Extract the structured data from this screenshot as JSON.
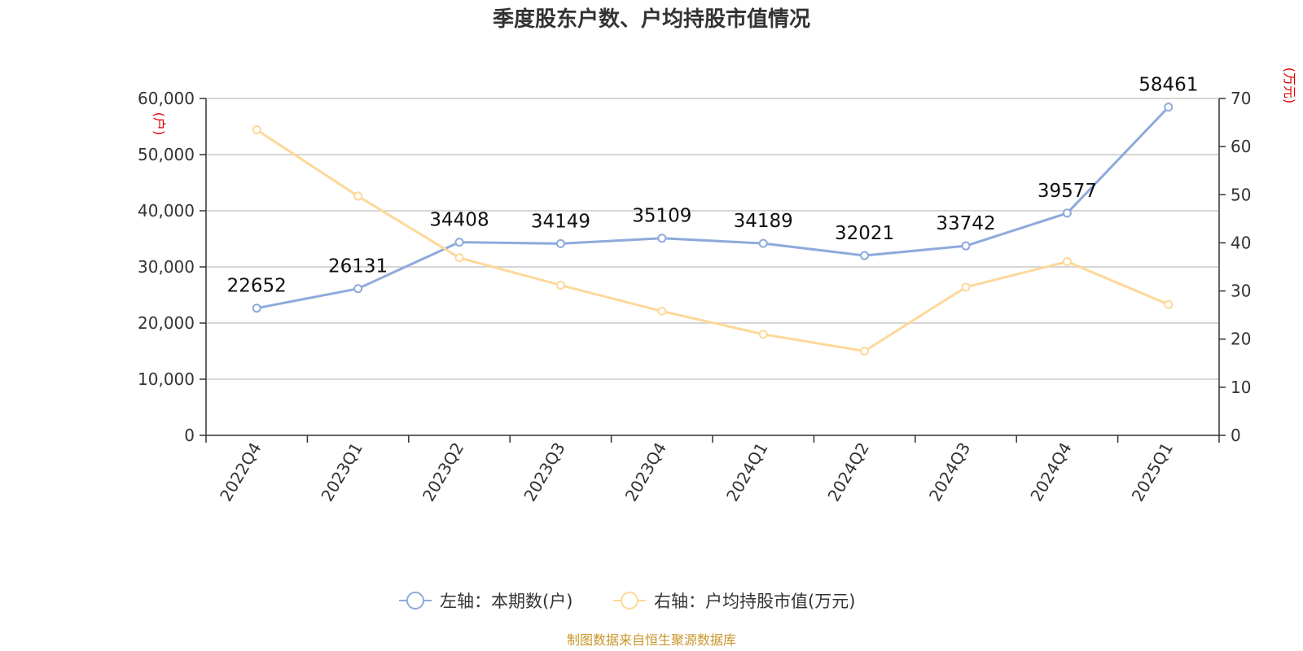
{
  "chart_data": {
    "type": "line",
    "title": "季度股东户数、户均持股市值情况",
    "categories": [
      "2022Q4",
      "2023Q1",
      "2023Q2",
      "2023Q3",
      "2023Q4",
      "2024Q1",
      "2024Q2",
      "2024Q3",
      "2024Q4",
      "2025Q1"
    ],
    "left_axis": {
      "unit": "(户)",
      "ylim": [
        0,
        60000
      ],
      "ticks": [
        "0",
        "10,000",
        "20,000",
        "30,000",
        "40,000",
        "50,000",
        "60,000"
      ]
    },
    "right_axis": {
      "unit": "(万元)",
      "ylim": [
        0,
        70
      ],
      "ticks": [
        "0",
        "10",
        "20",
        "30",
        "40",
        "50",
        "60",
        "70"
      ]
    },
    "series": [
      {
        "name": "左轴：本期数(户)",
        "axis": "left",
        "color": "#8eaadb",
        "values": [
          22652,
          26131,
          34408,
          34149,
          35109,
          34189,
          32021,
          33742,
          39577,
          58461
        ],
        "labels": [
          "22652",
          "26131",
          "34408",
          "34149",
          "35109",
          "34189",
          "32021",
          "33742",
          "39577",
          "58461"
        ]
      },
      {
        "name": "右轴：户均持股市值(万元)",
        "axis": "right",
        "color": "#fdd899",
        "values": [
          63.5,
          49.7,
          36.9,
          31.2,
          25.8,
          21.0,
          17.5,
          30.8,
          36.1,
          27.2
        ]
      }
    ],
    "grid": true,
    "legend_position": "bottom",
    "source": "制图数据来自恒生聚源数据库"
  }
}
